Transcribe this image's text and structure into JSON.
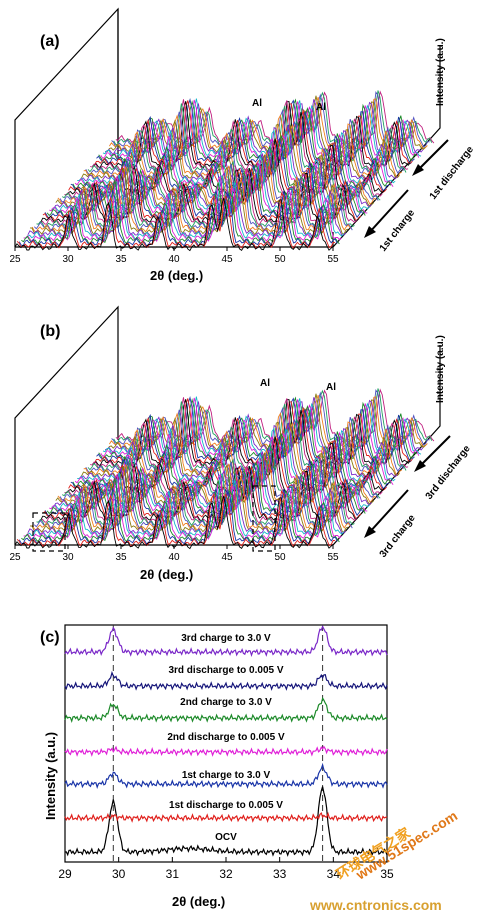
{
  "panels": {
    "a": {
      "label": "(a)",
      "xlabel": "2θ (deg.)",
      "zlabel": "Intensity (a.u.)",
      "xticks": [
        "25",
        "30",
        "35",
        "40",
        "45",
        "50",
        "55"
      ],
      "peak_label_1": "Al",
      "peak_label_2": "Al",
      "arrow_discharge": "1st discharge",
      "arrow_charge": "1st charge"
    },
    "b": {
      "label": "(b)",
      "xlabel": "2θ (deg.)",
      "zlabel": "Intensity (a.u.)",
      "xticks": [
        "25",
        "30",
        "35",
        "40",
        "45",
        "50",
        "55"
      ],
      "peak_label_1": "Al",
      "peak_label_2": "Al",
      "arrow_discharge": "3rd discharge",
      "arrow_charge": "3rd charge"
    },
    "c": {
      "label": "(c)",
      "xlabel": "2θ (deg.)",
      "ylabel": "Intensity (a.u.)",
      "xticks": [
        "29",
        "30",
        "31",
        "32",
        "33",
        "34",
        "35"
      ]
    }
  },
  "watermark": {
    "line1": "环球电气之家",
    "line2": "www.51spec.com",
    "line3": "www.cntronics.com"
  },
  "chart_data": [
    {
      "type": "line",
      "panel": "a",
      "title": "",
      "xlabel": "2θ (deg.)",
      "ylabel": "Intensity (a.u.)",
      "xlim": [
        25,
        55
      ],
      "peaks_2theta": [
        30.0,
        33.8,
        38.5,
        43.5,
        44.7,
        50.0,
        53.5
      ],
      "annotations": [
        {
          "text": "Al",
          "x": 44.7
        },
        {
          "text": "Al",
          "x": 50.0
        }
      ],
      "series_groups": [
        {
          "name": "1st discharge",
          "n_scans": 28
        },
        {
          "name": "1st charge",
          "n_scans": 20
        }
      ]
    },
    {
      "type": "line",
      "panel": "b",
      "title": "",
      "xlabel": "2θ (deg.)",
      "ylabel": "Intensity (a.u.)",
      "xlim": [
        25,
        55
      ],
      "peaks_2theta": [
        30.0,
        33.8,
        38.5,
        43.5,
        44.7,
        50.0,
        53.5
      ],
      "annotations": [
        {
          "text": "Al",
          "x": 44.7
        },
        {
          "text": "Al",
          "x": 50.0
        }
      ],
      "series_groups": [
        {
          "name": "3rd discharge",
          "n_scans": 28
        },
        {
          "name": "3rd charge",
          "n_scans": 20
        }
      ]
    },
    {
      "type": "line",
      "panel": "c",
      "title": "",
      "xlabel": "2θ (deg.)",
      "ylabel": "Intensity (a.u.)",
      "xlim": [
        29,
        35
      ],
      "reference_lines_x": [
        29.9,
        33.8
      ],
      "series": [
        {
          "name": "OCV",
          "color": "#000000",
          "peak_heights": [
            0.55,
            0.72
          ]
        },
        {
          "name": "1st discharge to 0.005 V",
          "color": "#e0201c",
          "peak_heights": [
            0.02,
            0.03
          ]
        },
        {
          "name": "1st charge to 3.0 V",
          "color": "#1a35a8",
          "peak_heights": [
            0.12,
            0.18
          ]
        },
        {
          "name": "2nd discharge to 0.005 V",
          "color": "#e020d8",
          "peak_heights": [
            0.03,
            0.04
          ]
        },
        {
          "name": "2nd charge to 3.0 V",
          "color": "#1d8a2a",
          "peak_heights": [
            0.15,
            0.2
          ]
        },
        {
          "name": "3rd discharge to 0.005 V",
          "color": "#16167a",
          "peak_heights": [
            0.12,
            0.12
          ]
        },
        {
          "name": "3rd charge to 3.0 V",
          "color": "#7a28c8",
          "peak_heights": [
            0.25,
            0.28
          ]
        }
      ]
    }
  ]
}
